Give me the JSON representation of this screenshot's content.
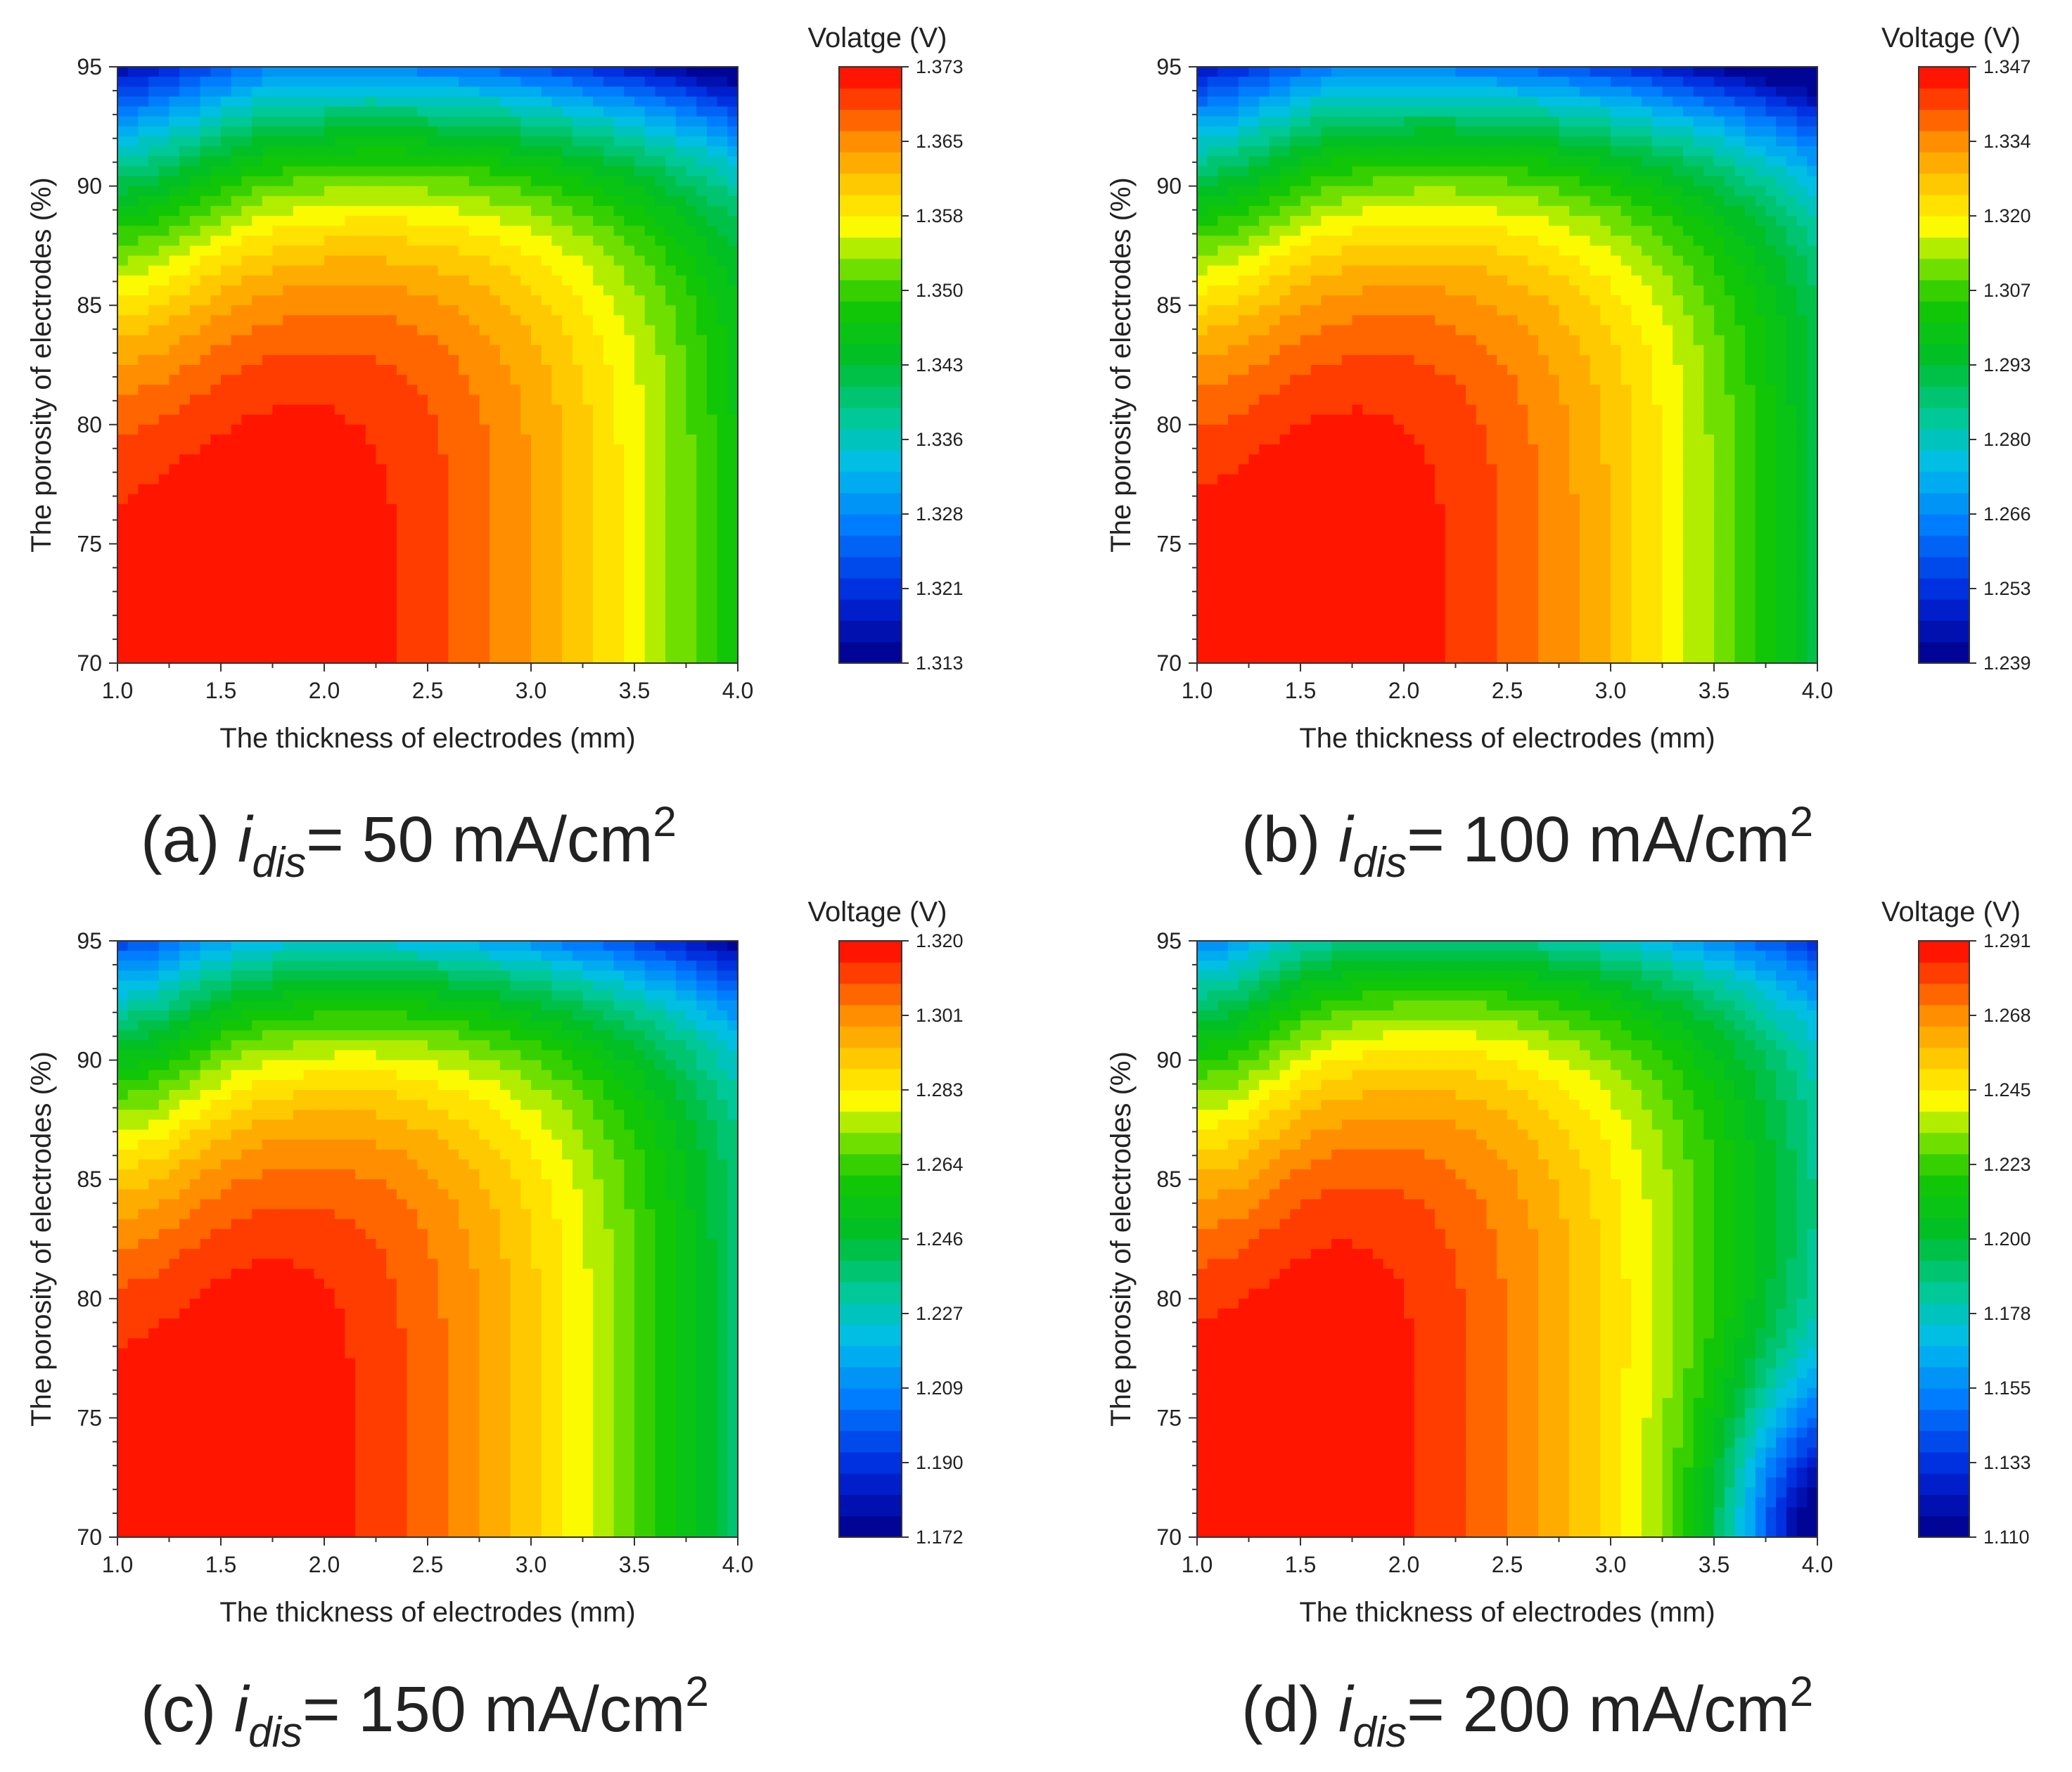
{
  "chart_data": [
    {
      "type": "heatmap",
      "panel": "a",
      "caption": {
        "prefix": "(a) ",
        "symbol": "i",
        "subscript": "dis",
        "suffix": "= 50 mA/cm",
        "superscript": "2"
      },
      "xlabel": "The thickness of electrodes (mm)",
      "ylabel": "The porosity of electrodes (%)",
      "xlim": [
        1.0,
        4.0
      ],
      "ylim": [
        70,
        95
      ],
      "xticks": [
        "1.0",
        "1.5",
        "2.0",
        "2.5",
        "3.0",
        "3.5",
        "4.0"
      ],
      "yticks": [
        "70",
        "75",
        "80",
        "85",
        "90",
        "95"
      ],
      "colorbar": {
        "title": "Volatge (V)",
        "min": 1.313,
        "max": 1.373,
        "ticks": [
          "1.373",
          "1.365",
          "1.358",
          "1.350",
          "1.343",
          "1.336",
          "1.328",
          "1.321",
          "1.313"
        ]
      },
      "params": {
        "cx": 1.7,
        "cy": 72,
        "drop": 0.42,
        "curv": 1.6,
        "xq": 0.22,
        "xexp": 1.9,
        "pbase": 2.6,
        "pslope": 1.0
      }
    },
    {
      "type": "heatmap",
      "panel": "b",
      "caption": {
        "prefix": "(b) ",
        "symbol": "i",
        "subscript": "dis",
        "suffix": "= 100 mA/cm",
        "superscript": "2"
      },
      "xlabel": "The thickness of electrodes (mm)",
      "ylabel": "The porosity of electrodes (%)",
      "xlim": [
        1.0,
        4.0
      ],
      "ylim": [
        70,
        95
      ],
      "xticks": [
        "1.0",
        "1.5",
        "2.0",
        "2.5",
        "3.0",
        "3.5",
        "4.0"
      ],
      "yticks": [
        "70",
        "75",
        "80",
        "85",
        "90",
        "95"
      ],
      "colorbar": {
        "title": "Voltage (V)",
        "min": 1.239,
        "max": 1.347,
        "ticks": [
          "1.347",
          "1.334",
          "1.320",
          "1.307",
          "1.293",
          "1.280",
          "1.266",
          "1.253",
          "1.239"
        ]
      },
      "params": {
        "cx": 1.6,
        "cy": 72,
        "drop": 0.42,
        "curv": 1.6,
        "xq": 0.26,
        "xexp": 1.8,
        "pbase": 2.6,
        "pslope": 1.1
      }
    },
    {
      "type": "heatmap",
      "panel": "c",
      "caption": {
        "prefix": "(c) ",
        "symbol": "i",
        "subscript": "dis",
        "suffix": "= 150 mA/cm",
        "superscript": "2"
      },
      "xlabel": "The thickness of electrodes (mm)",
      "ylabel": "The porosity of electrodes (%)",
      "xlim": [
        1.0,
        4.0
      ],
      "ylim": [
        70,
        95
      ],
      "xticks": [
        "1.0",
        "1.5",
        "2.0",
        "2.5",
        "3.0",
        "3.5",
        "4.0"
      ],
      "yticks": [
        "70",
        "75",
        "80",
        "85",
        "90",
        "95"
      ],
      "colorbar": {
        "title": "Voltage (V)",
        "min": 1.172,
        "max": 1.32,
        "ticks": [
          "1.320",
          "1.301",
          "1.283",
          "1.264",
          "1.246",
          "1.227",
          "1.209",
          "1.190",
          "1.172"
        ]
      },
      "params": {
        "cx": 1.6,
        "cy": 73,
        "drop": 0.42,
        "curv": 1.6,
        "xq": 0.3,
        "xexp": 1.7,
        "pbase": 2.5,
        "pslope": 1.3
      }
    },
    {
      "type": "heatmap",
      "panel": "d",
      "caption": {
        "prefix": "(d) ",
        "symbol": "i",
        "subscript": "dis",
        "suffix": "= 200 mA/cm",
        "superscript": "2"
      },
      "xlabel": "The thickness of electrodes (mm)",
      "ylabel": "The porosity of electrodes (%)",
      "xlim": [
        1.0,
        4.0
      ],
      "ylim": [
        70,
        95
      ],
      "xticks": [
        "1.0",
        "1.5",
        "2.0",
        "2.5",
        "3.0",
        "3.5",
        "4.0"
      ],
      "yticks": [
        "70",
        "75",
        "80",
        "85",
        "90",
        "95"
      ],
      "colorbar": {
        "title": "Voltage (V)",
        "min": 1.11,
        "max": 1.291,
        "ticks": [
          "1.291",
          "1.268",
          "1.245",
          "1.223",
          "1.200",
          "1.178",
          "1.155",
          "1.133",
          "1.110"
        ]
      },
      "params": {
        "cx": 1.55,
        "cy": 74,
        "drop": 0.4,
        "curv": 1.6,
        "xq": 0.32,
        "xexp": 1.6,
        "pbase": 2.4,
        "pslope": 1.5,
        "dip": {
          "x": 4.0,
          "y": 70,
          "sx": 0.45,
          "sy": 6.0,
          "depth": 0.45
        }
      }
    }
  ]
}
